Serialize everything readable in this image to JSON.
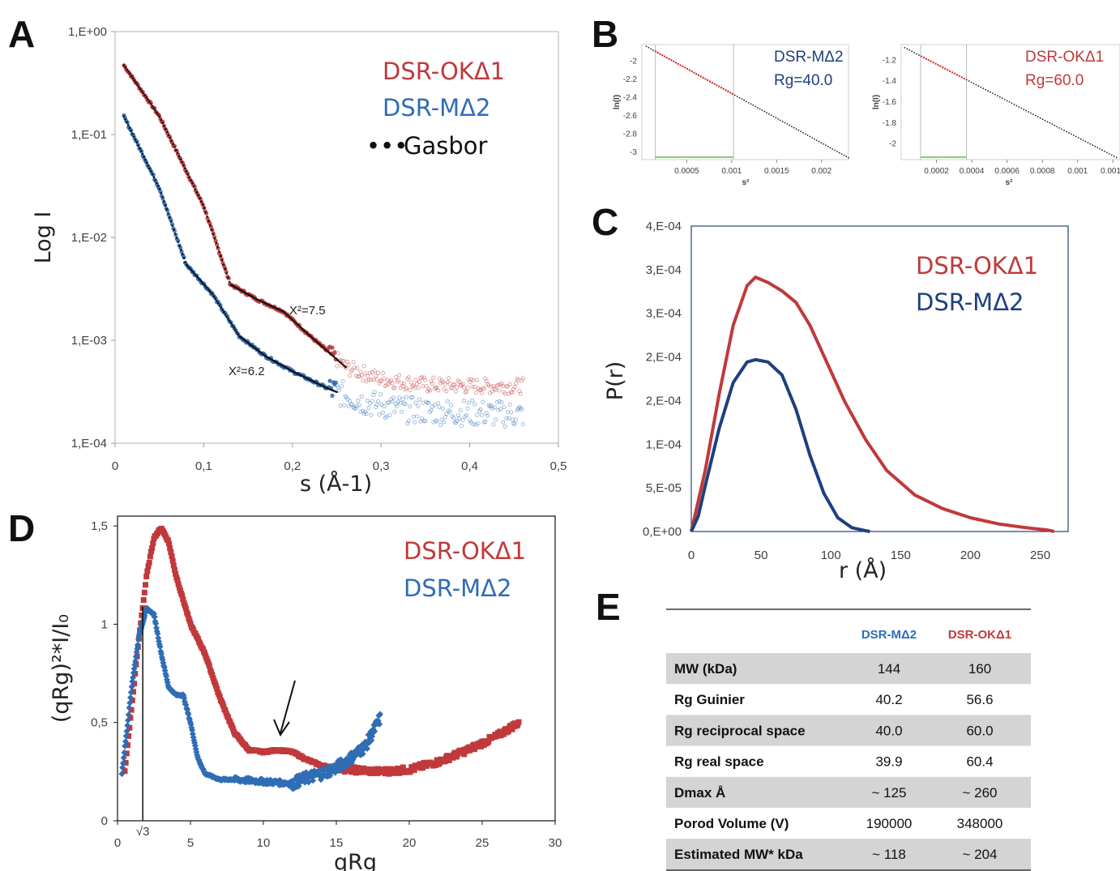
{
  "colors": {
    "red": "#c0393b",
    "blue": "#2f6db5",
    "darkblue": "#1f3f7f",
    "black": "#111111"
  },
  "panel_a": {
    "letter": "A",
    "legend": [
      "DSR-OKΔ1",
      "DSR-MΔ2",
      "Gasbor"
    ],
    "legend_dots": "•••",
    "annotations": [
      "X²=7.5",
      "X²=6.2"
    ],
    "chart_data": {
      "type": "scatter",
      "xlabel": "s (Å-1)",
      "ylabel": "Log I",
      "xlim": [
        0,
        0.5
      ],
      "ylim": [
        0.0001,
        1
      ],
      "yscale": "log",
      "x_ticks": [
        "0",
        "0,1",
        "0,2",
        "0,3",
        "0,4",
        "0,5"
      ],
      "y_ticks": [
        "1,E+00",
        "1,E-01",
        "1,E-02",
        "1,E-03",
        "1,E-04"
      ],
      "series": [
        {
          "name": "DSR-OKΔ1",
          "x": [
            0.01,
            0.05,
            0.1,
            0.13,
            0.16,
            0.19,
            0.22,
            0.26,
            0.3,
            0.35,
            0.4,
            0.46
          ],
          "y": [
            0.47,
            0.15,
            0.02,
            0.0035,
            0.0025,
            0.0019,
            0.0011,
            0.00055,
            0.00042,
            0.00037,
            0.00036,
            0.00036
          ]
        },
        {
          "name": "DSR-MΔ2",
          "x": [
            0.01,
            0.05,
            0.08,
            0.11,
            0.14,
            0.17,
            0.2,
            0.24,
            0.28,
            0.33,
            0.38,
            0.46
          ],
          "y": [
            0.15,
            0.03,
            0.0055,
            0.0028,
            0.0011,
            0.0007,
            0.0005,
            0.00034,
            0.00025,
            0.00021,
            0.0002,
            0.00019
          ]
        },
        {
          "name": "Gasbor",
          "x": [
            0.01,
            0.26
          ],
          "y": [
            0.47,
            0.00055
          ]
        }
      ]
    }
  },
  "panel_b": {
    "letter": "B",
    "left": {
      "legend": [
        "DSR-MΔ2",
        "Rg=40.0"
      ],
      "chart_data": {
        "type": "line",
        "xlabel": "s²",
        "ylabel": "ln(I)",
        "x_ticks": [
          "0.0005",
          "0.001",
          "0.0015",
          "0.002"
        ],
        "y_ticks": [
          "-2",
          "-2.2",
          "-2.4",
          "-2.6",
          "-2.8",
          "-3"
        ],
        "xlim": [
          0,
          0.0023
        ],
        "ylim": [
          -3.08,
          -1.82
        ],
        "fit_range": [
          0.00015,
          0.00102
        ],
        "x": [
          5e-05,
          0.0023
        ],
        "y": [
          -1.84,
          -3.06
        ]
      }
    },
    "right": {
      "legend": [
        "DSR-OKΔ1",
        "Rg=60.0"
      ],
      "chart_data": {
        "type": "line",
        "xlabel": "s²",
        "ylabel": "ln(I)",
        "x_ticks": [
          "0.0002",
          "0.0004",
          "0.0006",
          "0.0008",
          "0.001",
          "0.0012"
        ],
        "y_ticks": [
          "-1.2",
          "-1.4",
          "-1.6",
          "-1.8",
          "-2"
        ],
        "xlim": [
          0,
          0.00124
        ],
        "ylim": [
          -2.15,
          -1.05
        ],
        "fit_range": [
          0.00011,
          0.00037
        ],
        "x": [
          2e-05,
          0.00122
        ],
        "y": [
          -1.08,
          -2.13
        ]
      }
    }
  },
  "panel_c": {
    "letter": "C",
    "legend": [
      "DSR-OKΔ1",
      "DSR-MΔ2"
    ],
    "chart_data": {
      "type": "line",
      "xlabel": "r (Å)",
      "ylabel": "P(r)",
      "xlim": [
        0,
        270
      ],
      "ylim": [
        0,
        0.0004
      ],
      "x_ticks": [
        "0",
        "50",
        "100",
        "150",
        "200",
        "250"
      ],
      "y_ticks": [
        "4,E-04",
        "3,E-04",
        "3,E-04",
        "2,E-04",
        "2,E-04",
        "1,E-04",
        "5,E-05",
        "0,E+00"
      ],
      "series": [
        {
          "name": "DSR-OKΔ1",
          "x": [
            0,
            10,
            20,
            30,
            40,
            46,
            55,
            65,
            75,
            85,
            95,
            110,
            125,
            140,
            160,
            180,
            200,
            220,
            240,
            255,
            260
          ],
          "y": [
            0,
            8e-05,
            0.00018,
            0.00027,
            0.000322,
            0.000333,
            0.000326,
            0.000315,
            0.0003,
            0.00027,
            0.00023,
            0.00017,
            0.00012,
            8e-05,
            4.8e-05,
            3e-05,
            1.8e-05,
            1e-05,
            5e-06,
            2e-06,
            0
          ]
        },
        {
          "name": "DSR-MΔ2",
          "x": [
            0,
            5,
            10,
            20,
            30,
            40,
            46,
            55,
            65,
            75,
            85,
            95,
            105,
            115,
            125,
            128
          ],
          "y": [
            0,
            2e-05,
            6e-05,
            0.000135,
            0.000195,
            0.000222,
            0.000225,
            0.000222,
            0.000205,
            0.00016,
            0.0001,
            5e-05,
            1.8e-05,
            5e-06,
            1e-06,
            0
          ]
        }
      ]
    }
  },
  "panel_d": {
    "letter": "D",
    "legend": [
      "DSR-OKΔ1",
      "DSR-MΔ2"
    ],
    "sqrt3_label": "√3",
    "chart_data": {
      "type": "scatter",
      "xlabel": "qRg",
      "ylabel": "(qRg)²*I/I₀",
      "xlim": [
        0,
        30
      ],
      "ylim": [
        0,
        1.55
      ],
      "x_ticks": [
        "0",
        "5",
        "10",
        "15",
        "20",
        "25",
        "30"
      ],
      "y_ticks": [
        "0",
        "0,5",
        "1",
        "1,5"
      ],
      "series": [
        {
          "name": "DSR-OKΔ1",
          "x": [
            0.5,
            1,
            1.5,
            2,
            2.5,
            3,
            3.5,
            4,
            5,
            6,
            7,
            8,
            9,
            10,
            11,
            12,
            13,
            14,
            15,
            16,
            18,
            20,
            22,
            24,
            26,
            27.5
          ],
          "y": [
            0.25,
            0.6,
            0.95,
            1.25,
            1.44,
            1.49,
            1.42,
            1.25,
            1.0,
            0.85,
            0.63,
            0.45,
            0.36,
            0.35,
            0.36,
            0.35,
            0.31,
            0.28,
            0.27,
            0.26,
            0.25,
            0.26,
            0.3,
            0.36,
            0.43,
            0.5
          ]
        },
        {
          "name": "DSR-MΔ2",
          "x": [
            0.3,
            0.7,
            1,
            1.5,
            2,
            2.5,
            3,
            3.5,
            4,
            4.5,
            5,
            5.5,
            6,
            7,
            8,
            10,
            12,
            13,
            14,
            15,
            16,
            17,
            17.5,
            18
          ],
          "y": [
            0.24,
            0.5,
            0.7,
            0.95,
            1.08,
            1.05,
            0.85,
            0.68,
            0.64,
            0.64,
            0.5,
            0.32,
            0.24,
            0.21,
            0.21,
            0.2,
            0.19,
            0.22,
            0.24,
            0.27,
            0.32,
            0.38,
            0.45,
            0.52
          ]
        }
      ]
    }
  },
  "panel_e": {
    "letter": "E",
    "headers": [
      "",
      "DSR-MΔ2",
      "DSR-OKΔ1"
    ],
    "rows": [
      [
        "MW (kDa)",
        "144",
        "160"
      ],
      [
        "Rg Guinier",
        "40.2",
        "56.6"
      ],
      [
        "Rg reciprocal space",
        "40.0",
        "60.0"
      ],
      [
        "Rg real space",
        "39.9",
        "60.4"
      ],
      [
        "Dmax Å",
        "~ 125",
        "~ 260"
      ],
      [
        "Porod Volume (V)",
        "190000",
        "348000"
      ],
      [
        "Estimated MW* kDa",
        "~ 118",
        "~ 204"
      ]
    ]
  }
}
